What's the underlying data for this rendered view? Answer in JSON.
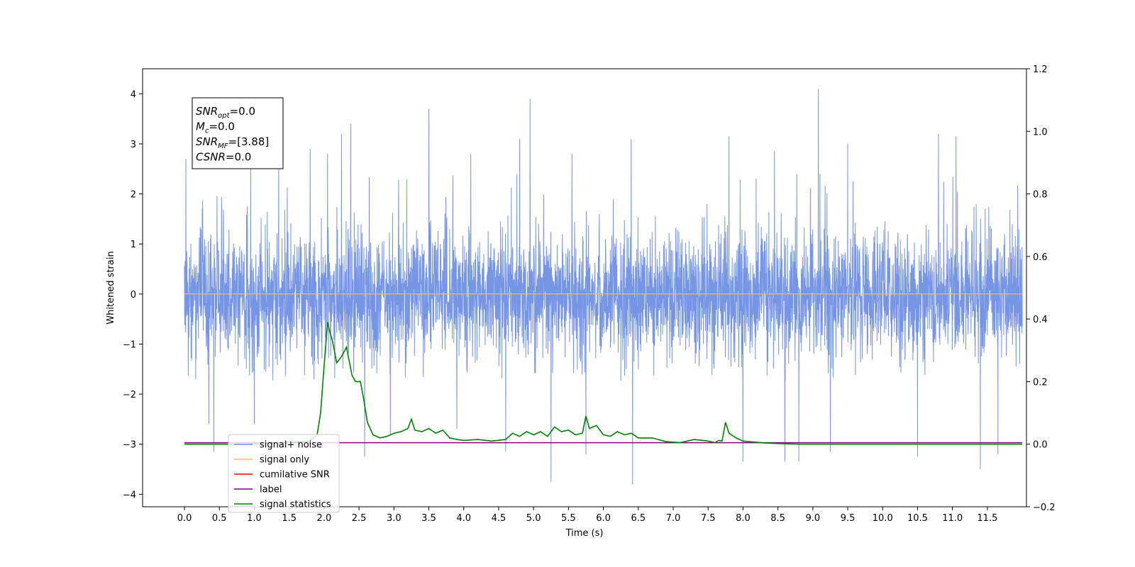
{
  "chart_data": {
    "type": "line",
    "xlabel": "Time (s)",
    "ylabel": "Whitened strain",
    "xlim": [
      -0.6,
      12.06
    ],
    "ylim_left": [
      -4.25,
      4.5
    ],
    "ylim_right": [
      -0.2,
      1.2
    ],
    "x_ticks": [
      "0.0",
      "0.5",
      "1.0",
      "1.5",
      "2.0",
      "2.5",
      "3.0",
      "3.5",
      "4.0",
      "4.5",
      "5.0",
      "5.5",
      "6.0",
      "6.5",
      "7.0",
      "7.5",
      "8.0",
      "8.5",
      "9.0",
      "9.5",
      "10.0",
      "10.5",
      "11.0",
      "11.5"
    ],
    "y_ticks_left": [
      "−4",
      "−3",
      "−2",
      "−1",
      "0",
      "1",
      "2",
      "3",
      "4"
    ],
    "y_ticks_right": [
      "−0.2",
      "0.0",
      "0.2",
      "0.4",
      "0.6",
      "0.8",
      "1.0",
      "1.2"
    ],
    "stats_box": [
      {
        "base": "SNR",
        "sub": "opt",
        "value": "=0.0"
      },
      {
        "base": "M",
        "sub": "c",
        "value": "=0.0"
      },
      {
        "base": "SNR",
        "sub": "MF",
        "value": "=[3.88]"
      },
      {
        "base": "CSNR",
        "sub": "",
        "value": "=0.0"
      }
    ],
    "legend": {
      "placement": "lower-left",
      "entries": [
        {
          "label": "signal+ noise",
          "color": "#6f8fe6"
        },
        {
          "label": "signal only",
          "color": "#ffc04d"
        },
        {
          "label": "cumilative SNR",
          "color": "#ff0000"
        },
        {
          "label": "label",
          "color": "#800080"
        },
        {
          "label": "signal statistics",
          "color": "#008000"
        }
      ]
    },
    "series": [
      {
        "name": "signal+ noise",
        "axis": "left",
        "kind": "noise",
        "x_range": [
          0.0,
          12.0
        ],
        "base_amplitude": 0.6,
        "envelope": [
          -1.75,
          2.4
        ],
        "spikes": [
          {
            "x": 0.02,
            "y": 2.7
          },
          {
            "x": 0.35,
            "y": -2.6
          },
          {
            "x": 0.42,
            "y": -3.15
          },
          {
            "x": 0.95,
            "y": 2.55
          },
          {
            "x": 1.0,
            "y": -2.6
          },
          {
            "x": 1.35,
            "y": 2.9
          },
          {
            "x": 1.8,
            "y": 2.9
          },
          {
            "x": 2.05,
            "y": 2.8
          },
          {
            "x": 2.25,
            "y": 3.2
          },
          {
            "x": 2.38,
            "y": 3.4
          },
          {
            "x": 2.58,
            "y": -3.25
          },
          {
            "x": 2.95,
            "y": -2.8
          },
          {
            "x": 3.5,
            "y": 3.7
          },
          {
            "x": 3.9,
            "y": -2.7
          },
          {
            "x": 4.1,
            "y": 2.8
          },
          {
            "x": 4.6,
            "y": -3.15
          },
          {
            "x": 4.8,
            "y": 3.1
          },
          {
            "x": 4.95,
            "y": 3.9
          },
          {
            "x": 5.25,
            "y": -3.75
          },
          {
            "x": 5.55,
            "y": 2.8
          },
          {
            "x": 5.75,
            "y": -3.2
          },
          {
            "x": 6.42,
            "y": -3.8
          },
          {
            "x": 6.4,
            "y": 3.1
          },
          {
            "x": 7.8,
            "y": 3.15
          },
          {
            "x": 8.0,
            "y": -3.35
          },
          {
            "x": 8.45,
            "y": 2.85
          },
          {
            "x": 8.6,
            "y": -3.35
          },
          {
            "x": 8.8,
            "y": -3.35
          },
          {
            "x": 9.08,
            "y": 4.1
          },
          {
            "x": 9.25,
            "y": -3.15
          },
          {
            "x": 9.5,
            "y": 3.0
          },
          {
            "x": 10.5,
            "y": -3.25
          },
          {
            "x": 10.8,
            "y": 3.2
          },
          {
            "x": 11.05,
            "y": 3.15
          },
          {
            "x": 11.4,
            "y": -3.5
          },
          {
            "x": 11.65,
            "y": -3.2
          }
        ]
      },
      {
        "name": "signal only",
        "axis": "left",
        "x": [
          0.0,
          12.0
        ],
        "y": [
          0.0,
          0.0
        ]
      },
      {
        "name": "label",
        "axis": "left",
        "x": [
          0.0,
          12.0
        ],
        "y": [
          -2.97,
          -2.97
        ]
      },
      {
        "name": "signal statistics",
        "axis": "right",
        "x": [
          0.0,
          1.0,
          1.8,
          1.9,
          1.95,
          2.0,
          2.05,
          2.08,
          2.12,
          2.18,
          2.25,
          2.32,
          2.4,
          2.45,
          2.52,
          2.57,
          2.62,
          2.7,
          2.8,
          2.9,
          3.0,
          3.1,
          3.2,
          3.25,
          3.3,
          3.4,
          3.5,
          3.6,
          3.7,
          3.8,
          3.9,
          4.0,
          4.2,
          4.4,
          4.6,
          4.7,
          4.8,
          4.9,
          5.0,
          5.1,
          5.2,
          5.3,
          5.4,
          5.5,
          5.6,
          5.7,
          5.75,
          5.8,
          5.9,
          6.0,
          6.1,
          6.2,
          6.3,
          6.4,
          6.5,
          6.7,
          6.9,
          7.1,
          7.3,
          7.5,
          7.6,
          7.65,
          7.7,
          7.75,
          7.8,
          7.9,
          8.0,
          8.1,
          8.3,
          8.5,
          8.8,
          9.5,
          12.0
        ],
        "y": [
          0.0,
          0.0,
          0.01,
          0.03,
          0.1,
          0.25,
          0.39,
          0.36,
          0.33,
          0.26,
          0.28,
          0.31,
          0.22,
          0.2,
          0.2,
          0.14,
          0.07,
          0.03,
          0.02,
          0.025,
          0.035,
          0.04,
          0.05,
          0.08,
          0.045,
          0.04,
          0.05,
          0.035,
          0.045,
          0.02,
          0.015,
          0.012,
          0.015,
          0.01,
          0.015,
          0.035,
          0.025,
          0.04,
          0.03,
          0.04,
          0.025,
          0.055,
          0.04,
          0.045,
          0.03,
          0.035,
          0.09,
          0.05,
          0.06,
          0.03,
          0.025,
          0.04,
          0.03,
          0.035,
          0.02,
          0.02,
          0.008,
          0.005,
          0.015,
          0.01,
          0.005,
          0.012,
          0.01,
          0.07,
          0.035,
          0.02,
          0.01,
          0.008,
          0.004,
          0.002,
          0.0,
          0.0,
          0.0
        ]
      }
    ]
  }
}
